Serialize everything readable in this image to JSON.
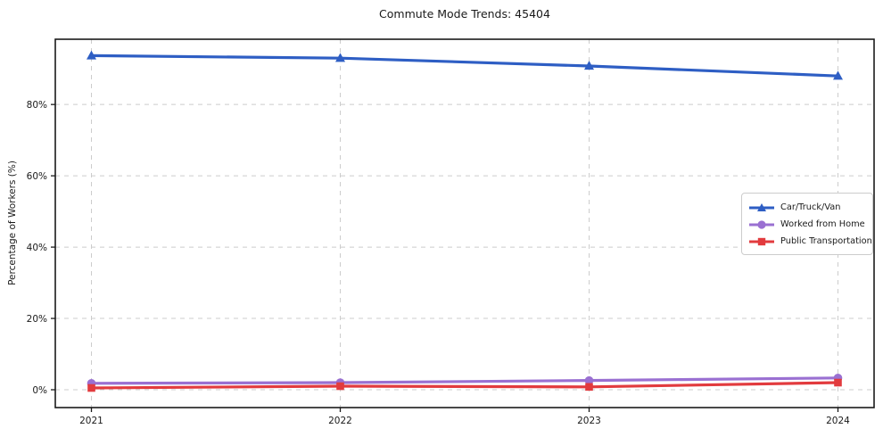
{
  "figure": {
    "title": "Commute Mode Trends: 45404",
    "ylabel": "Percentage of Workers (%)"
  },
  "chart_data": {
    "type": "line",
    "title": "Commute Mode Trends: 45404",
    "xlabel": "",
    "ylabel": "Percentage of Workers (%)",
    "categories": [
      "2021",
      "2022",
      "2023",
      "2024"
    ],
    "series": [
      {
        "name": "Car/Truck/Van",
        "values": [
          93.7,
          93.0,
          90.8,
          88.0
        ],
        "color": "#2e5ec4",
        "marker": "triangle"
      },
      {
        "name": "Worked from Home",
        "values": [
          1.8,
          2.0,
          2.6,
          3.3
        ],
        "color": "#9a70d2",
        "marker": "circle"
      },
      {
        "name": "Public Transportation",
        "values": [
          0.5,
          1.0,
          0.8,
          2.0
        ],
        "color": "#e23b3e",
        "marker": "square"
      }
    ],
    "ylim": [
      -5,
      98.3
    ],
    "yticks": [
      0,
      20,
      40,
      60,
      80
    ],
    "ytick_labels": [
      "0%",
      "20%",
      "40%",
      "60%",
      "80%"
    ],
    "grid": true,
    "grid_style": "dashed",
    "grid_color": "#cccccc",
    "spine_color": "#1a1a1a",
    "legend_position": "center right"
  }
}
